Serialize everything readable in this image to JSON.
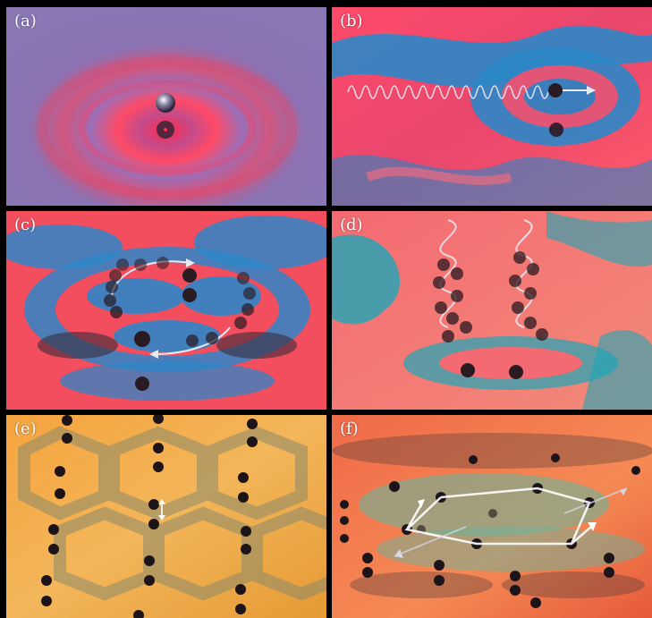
{
  "figure": {
    "panels": [
      {
        "label": "(a)"
      },
      {
        "label": "(b)"
      },
      {
        "label": "(c)"
      },
      {
        "label": "(d)"
      },
      {
        "label": "(e)"
      },
      {
        "label": "(f)"
      }
    ]
  },
  "colors": {
    "background": "#000000",
    "violet": "#8a6fb0",
    "red": "#ff4b5e",
    "blue": "#2f86c8",
    "cyan": "#1ea6b8",
    "orange": "#f7a23a",
    "salmon": "#f56a4a",
    "droplet": "#2a1a22"
  }
}
